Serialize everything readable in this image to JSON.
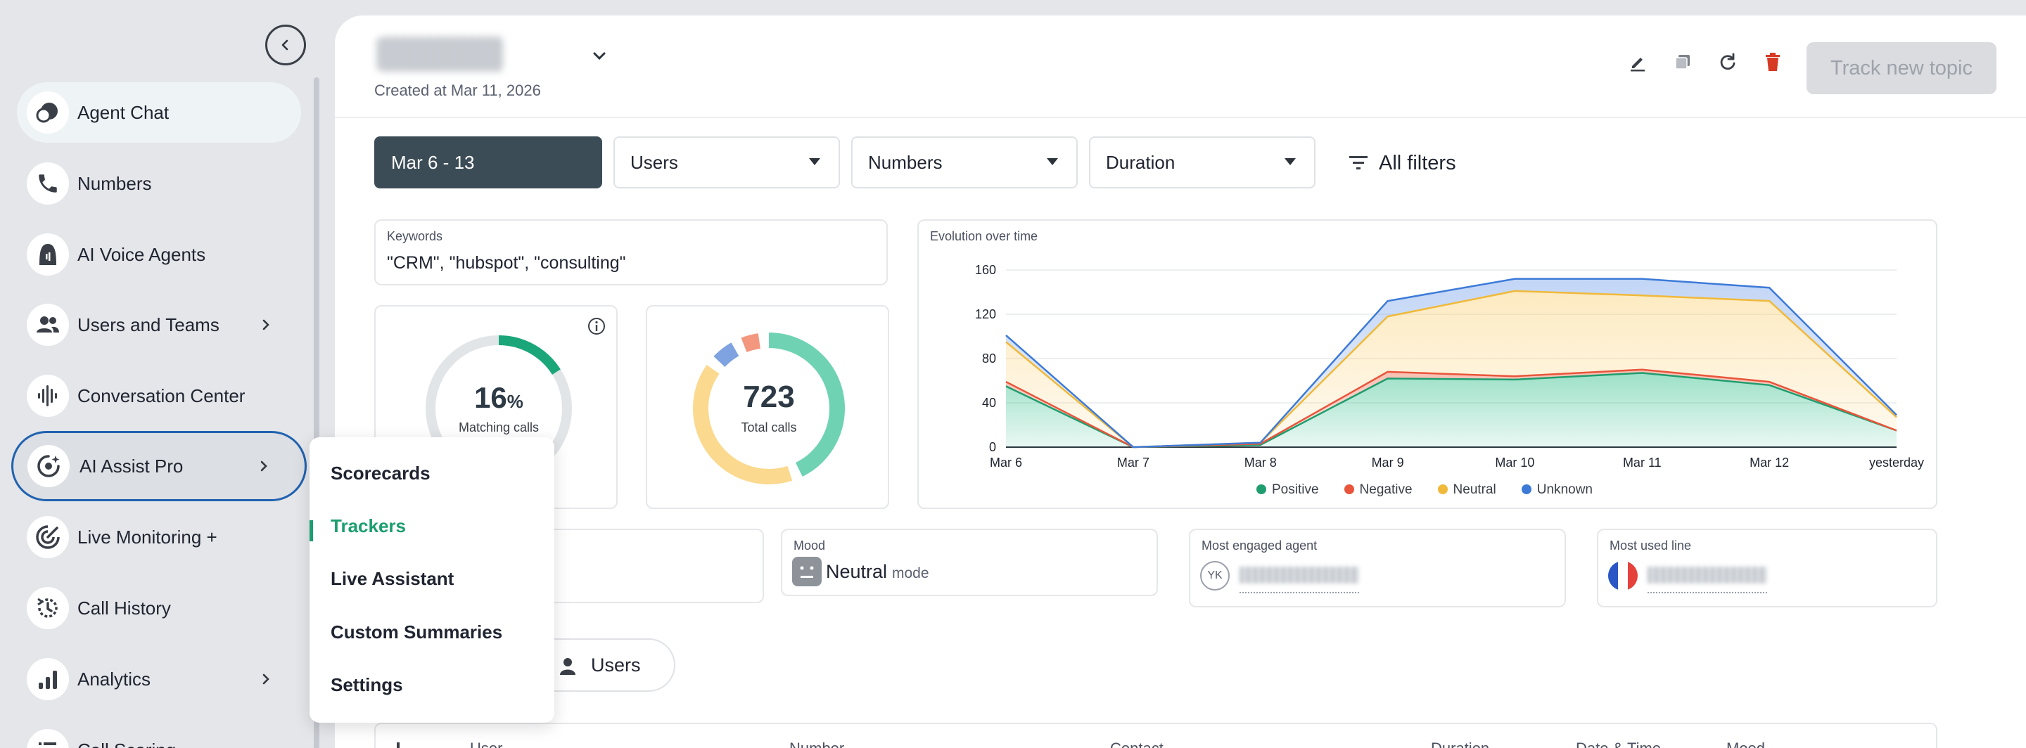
{
  "sidebar": {
    "items": [
      {
        "label": "Agent Chat",
        "icon": "agent-chat-icon"
      },
      {
        "label": "Numbers",
        "icon": "phone-icon"
      },
      {
        "label": "AI Voice Agents",
        "icon": "ai-voice-agent-icon"
      },
      {
        "label": "Users and Teams",
        "icon": "users-icon",
        "has_submenu": true
      },
      {
        "label": "Conversation Center",
        "icon": "waveform-icon"
      },
      {
        "label": "AI Assist Pro",
        "icon": "ai-assist-icon",
        "has_submenu": true
      },
      {
        "label": "Live Monitoring +",
        "icon": "live-monitoring-icon"
      },
      {
        "label": "Call History",
        "icon": "call-history-icon"
      },
      {
        "label": "Analytics",
        "icon": "analytics-icon",
        "has_submenu": true
      },
      {
        "label": "Call Scoring",
        "icon": "list-icon"
      }
    ]
  },
  "submenu": {
    "items": [
      "Scorecards",
      "Trackers",
      "Live Assistant",
      "Custom Summaries",
      "Settings"
    ],
    "active": "Trackers"
  },
  "header": {
    "created": "Created at Mar 11, 2026",
    "track_button": "Track new topic"
  },
  "filters": {
    "date": "Mar 6 - 13",
    "users": "Users",
    "numbers": "Numbers",
    "duration": "Duration",
    "all_filters": "All filters"
  },
  "keywords": {
    "label": "Keywords",
    "value": "\"CRM\", \"hubspot\", \"consulting\""
  },
  "matching": {
    "value": "16",
    "unit": "%",
    "label": "Matching calls",
    "percent": 16
  },
  "total": {
    "value": "723",
    "label": "Total calls",
    "segments": [
      {
        "name": "Positive",
        "share": 0.45,
        "color": "#6fd3b3"
      },
      {
        "name": "Neutral",
        "share": 0.42,
        "color": "#fbd98e"
      },
      {
        "name": "Unknown",
        "share": 0.07,
        "color": "#7ea3e0"
      },
      {
        "name": "Negative",
        "share": 0.06,
        "color": "#f3977f"
      }
    ]
  },
  "mood": {
    "label": "Mood",
    "value": "Neutral",
    "suffix": "mode"
  },
  "engaged_agent": {
    "label": "Most engaged agent",
    "initials": "YK"
  },
  "used_line": {
    "label": "Most used line"
  },
  "segment_toggle": {
    "users_label": "Users"
  },
  "table": {
    "columns": [
      "User",
      "Number",
      "Contact",
      "Duration",
      "Date & Time",
      "Mood"
    ]
  },
  "chart_data": {
    "type": "area",
    "title": "Evolution over time",
    "categories": [
      "Mar 6",
      "Mar 7",
      "Mar 8",
      "Mar 9",
      "Mar 10",
      "Mar 11",
      "Mar 12",
      "yesterday"
    ],
    "ylim": [
      0,
      160
    ],
    "yticks": [
      "0",
      "40",
      "80",
      "120",
      "160"
    ],
    "stacked": true,
    "series": [
      {
        "name": "Positive",
        "color": "#1f9d6e",
        "values": [
          55,
          0,
          2,
          62,
          61,
          67,
          56,
          15
        ]
      },
      {
        "name": "Negative",
        "color": "#e8553b",
        "values": [
          4,
          0,
          1,
          6,
          3,
          3,
          3,
          0
        ]
      },
      {
        "name": "Neutral",
        "color": "#f0b93a",
        "values": [
          36,
          0,
          1,
          50,
          77,
          67,
          73,
          12
        ]
      },
      {
        "name": "Unknown",
        "color": "#3d7ad8",
        "values": [
          6,
          0,
          0,
          14,
          11,
          15,
          12,
          2
        ]
      }
    ]
  }
}
